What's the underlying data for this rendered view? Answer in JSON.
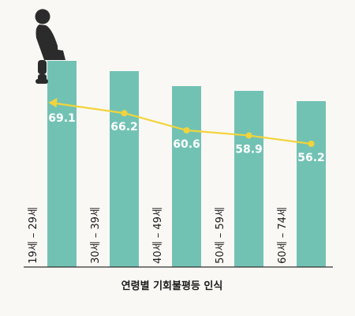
{
  "chart_data": {
    "type": "bar",
    "title": "연령별 기회불평등 인식",
    "categories": [
      "19세 – 29세",
      "30세 – 39세",
      "40세 – 49세",
      "50세 – 59세",
      "60세 – 74세"
    ],
    "values": [
      69.1,
      66.2,
      60.6,
      58.9,
      56.2
    ],
    "data_labels": [
      "69.1",
      "66.2",
      "60.6",
      "58.9",
      "56.2"
    ],
    "overlay_line": {
      "type": "line",
      "with_arrow": true
    },
    "grid": false,
    "legend": "none",
    "colors": {
      "bar": "#72c2b4",
      "line": "#f2d43a",
      "value_text": "#ffffff",
      "category_text": "#1a1a1a",
      "axis": "#333333",
      "figure": "#2b2b2b",
      "background": "#faf8f5"
    },
    "decoration": {
      "icon": "sitting-person-icon"
    }
  }
}
